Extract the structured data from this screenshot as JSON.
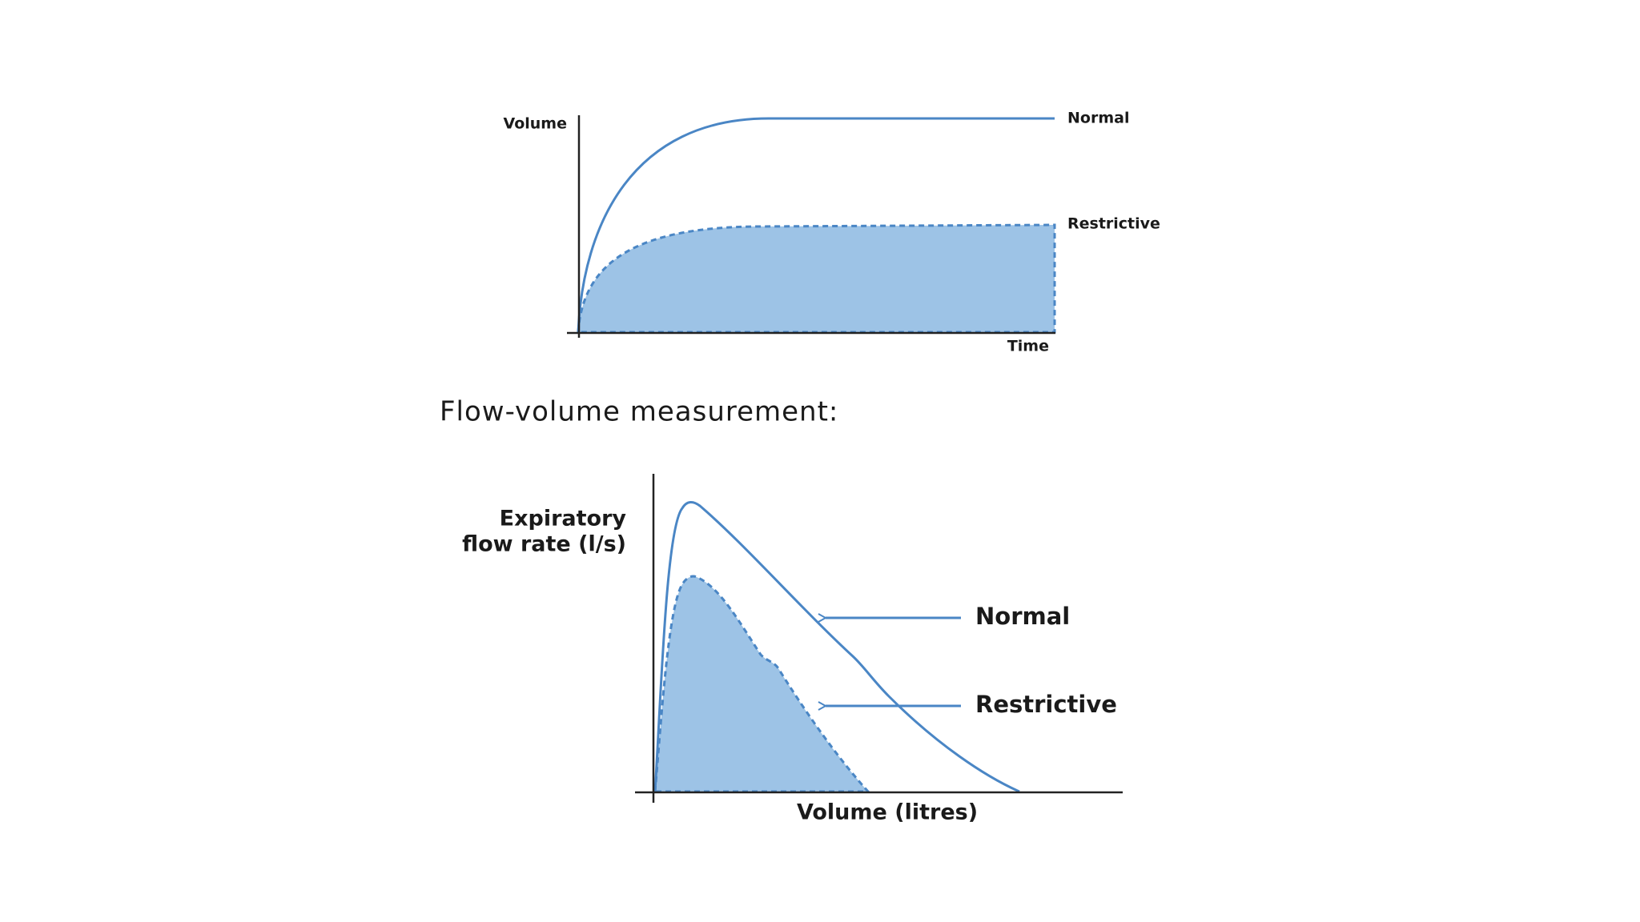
{
  "volume_time_chart": {
    "y_label": "Volume",
    "x_label": "Time",
    "curves": [
      {
        "label": "Normal"
      },
      {
        "label": "Restrictive"
      }
    ]
  },
  "section_heading": "Flow-volume measurement:",
  "flow_volume_chart": {
    "y_label": [
      "Expiratory",
      "flow rate (l/s)"
    ],
    "x_label": "Volume (litres)",
    "curves": [
      {
        "label": "Normal"
      },
      {
        "label": "Restrictive"
      }
    ]
  }
}
